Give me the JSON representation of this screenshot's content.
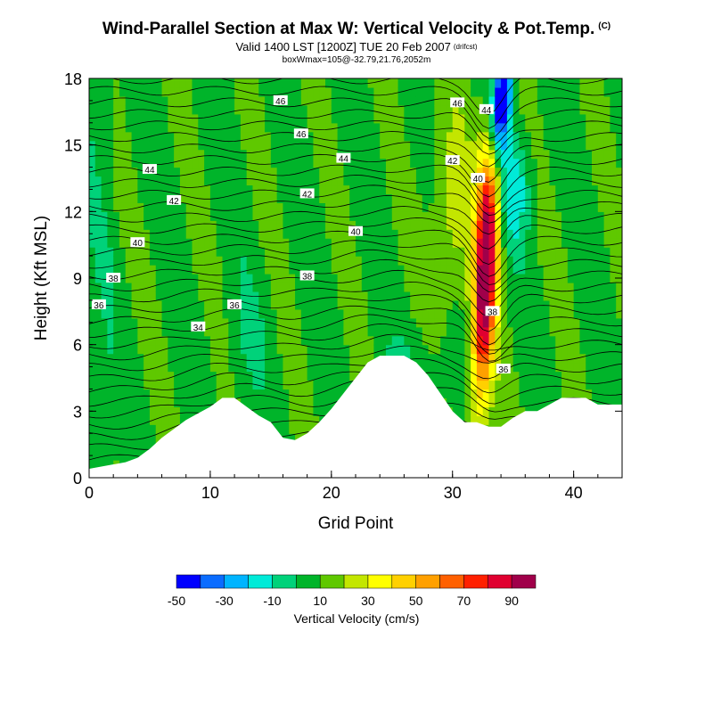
{
  "title": "Wind-Parallel Section at Max W: Vertical Velocity & Pot.Temp.",
  "title_mark": "(C)",
  "subtitle": "Valid 1400 LST [1200Z] TUE 20 Feb 2007",
  "subtitle_mark": "(drifcst)",
  "subtitle2": "boxWmax=105@-32.79,21.76,2052m",
  "chart_data": {
    "type": "heatmap",
    "xlabel": "Grid Point",
    "ylabel": "Height (Kft MSL)",
    "xlim": [
      0,
      44
    ],
    "ylim": [
      0,
      18
    ],
    "x_ticks": [
      0,
      10,
      20,
      30,
      40
    ],
    "y_ticks": [
      0,
      3,
      6,
      9,
      12,
      15,
      18
    ],
    "colorbar": {
      "label": "Vertical Velocity (cm/s)",
      "tick_labels": [
        "-50",
        "-30",
        "-10",
        "10",
        "30",
        "50",
        "70",
        "90"
      ],
      "levels": [
        -50,
        -40,
        -30,
        -20,
        -10,
        0,
        10,
        20,
        30,
        40,
        50,
        60,
        70,
        80,
        90,
        100
      ],
      "colors": [
        "#0000ff",
        "#0a6cff",
        "#00b4ff",
        "#00ead8",
        "#00d27a",
        "#00b42a",
        "#5fc800",
        "#c3e600",
        "#ffff00",
        "#ffd000",
        "#ffa000",
        "#ff6000",
        "#ff2000",
        "#e00030",
        "#a0004a"
      ]
    },
    "terrain_profile": [
      [
        0,
        0.4
      ],
      [
        3,
        0.7
      ],
      [
        4,
        0.9
      ],
      [
        5,
        1.3
      ],
      [
        6,
        1.8
      ],
      [
        7,
        2.2
      ],
      [
        8,
        2.6
      ],
      [
        9,
        2.9
      ],
      [
        10,
        3.2
      ],
      [
        11,
        3.6
      ],
      [
        12,
        3.6
      ],
      [
        13,
        3.2
      ],
      [
        14,
        2.8
      ],
      [
        15,
        2.5
      ],
      [
        16,
        1.8
      ],
      [
        17,
        1.7
      ],
      [
        18,
        2.0
      ],
      [
        19,
        2.5
      ],
      [
        20,
        3.1
      ],
      [
        21,
        3.8
      ],
      [
        22,
        4.5
      ],
      [
        23,
        5.2
      ],
      [
        24,
        5.5
      ],
      [
        25,
        5.5
      ],
      [
        26,
        5.5
      ],
      [
        27,
        5.2
      ],
      [
        28,
        4.6
      ],
      [
        29,
        3.8
      ],
      [
        30,
        3.0
      ],
      [
        31,
        2.5
      ],
      [
        32,
        2.5
      ],
      [
        33,
        2.3
      ],
      [
        34,
        2.3
      ],
      [
        35,
        2.7
      ],
      [
        36,
        3.0
      ],
      [
        37,
        3.0
      ],
      [
        38,
        3.3
      ],
      [
        39,
        3.6
      ],
      [
        40,
        3.6
      ],
      [
        41,
        3.6
      ],
      [
        42,
        3.3
      ],
      [
        44,
        3.3
      ]
    ],
    "theta_contour_labels": [
      {
        "x": 15.8,
        "y": 17.0,
        "label": "46"
      },
      {
        "x": 17.5,
        "y": 15.5,
        "label": "46"
      },
      {
        "x": 30.4,
        "y": 16.9,
        "label": "46"
      },
      {
        "x": 32.8,
        "y": 16.6,
        "label": "44"
      },
      {
        "x": 5.0,
        "y": 13.9,
        "label": "44"
      },
      {
        "x": 21.0,
        "y": 14.4,
        "label": "44"
      },
      {
        "x": 30.0,
        "y": 14.3,
        "label": "42"
      },
      {
        "x": 7.0,
        "y": 12.5,
        "label": "42"
      },
      {
        "x": 18.0,
        "y": 12.8,
        "label": "42"
      },
      {
        "x": 32.1,
        "y": 13.5,
        "label": "40"
      },
      {
        "x": 4.0,
        "y": 10.6,
        "label": "40"
      },
      {
        "x": 22.0,
        "y": 11.1,
        "label": "40"
      },
      {
        "x": 2.0,
        "y": 9.0,
        "label": "38"
      },
      {
        "x": 18.0,
        "y": 9.1,
        "label": "38"
      },
      {
        "x": 33.3,
        "y": 7.5,
        "label": "38"
      },
      {
        "x": 0.8,
        "y": 7.8,
        "label": "36"
      },
      {
        "x": 12.0,
        "y": 7.8,
        "label": "36"
      },
      {
        "x": 34.2,
        "y": 4.9,
        "label": "36"
      },
      {
        "x": 9.0,
        "y": 6.8,
        "label": "34"
      }
    ]
  }
}
